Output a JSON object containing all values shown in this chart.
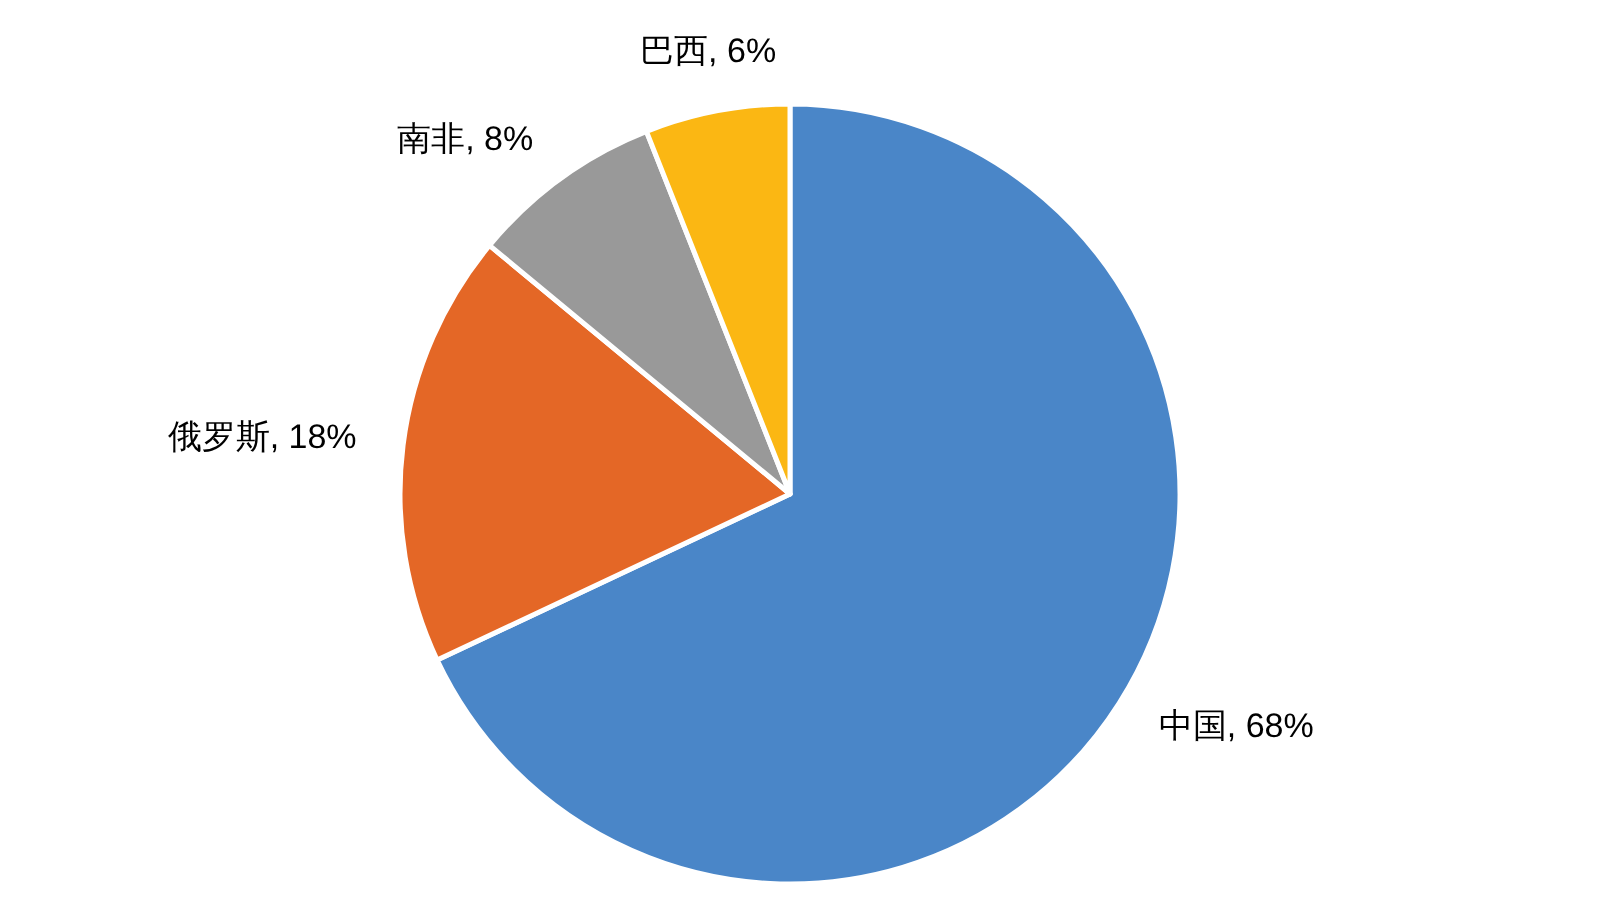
{
  "chart_data": {
    "type": "pie",
    "categories": [
      "中国",
      "俄罗斯",
      "南非",
      "巴西"
    ],
    "values": [
      68,
      18,
      8,
      6
    ],
    "value_labels": [
      "68%",
      "18%",
      "8%",
      "6%"
    ],
    "colors": [
      "#4a86c8",
      "#e46726",
      "#999999",
      "#fbb713"
    ]
  }
}
